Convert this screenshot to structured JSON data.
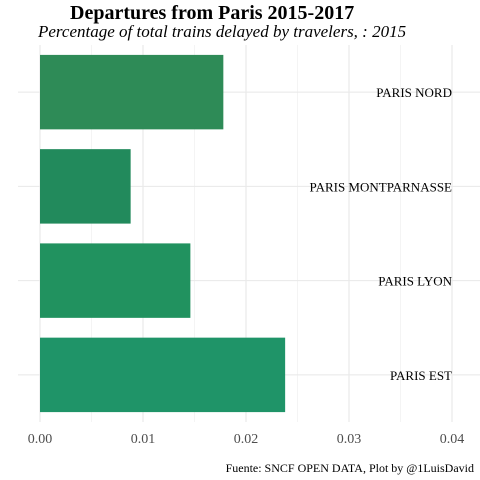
{
  "chart_data": {
    "type": "bar",
    "orientation": "horizontal",
    "title": "Departures from Paris 2015-2017",
    "subtitle": "Percentage of total trains delayed by travelers, : 2015",
    "caption": "Fuente: SNCF OPEN DATA, Plot by @1LuisDavid",
    "categories": [
      "PARIS EST",
      "PARIS LYON",
      "PARIS MONTPARNASSE",
      "PARIS NORD"
    ],
    "values": [
      0.0238,
      0.0146,
      0.0088,
      0.0178
    ],
    "bar_colors": [
      "#1f9468",
      "#21925f",
      "#228a5c",
      "#2e8b57"
    ],
    "xlim": [
      0,
      0.04
    ],
    "x_ticks": [
      "0.00",
      "0.01",
      "0.02",
      "0.03",
      "0.04"
    ],
    "grid": true,
    "legend": "none"
  }
}
